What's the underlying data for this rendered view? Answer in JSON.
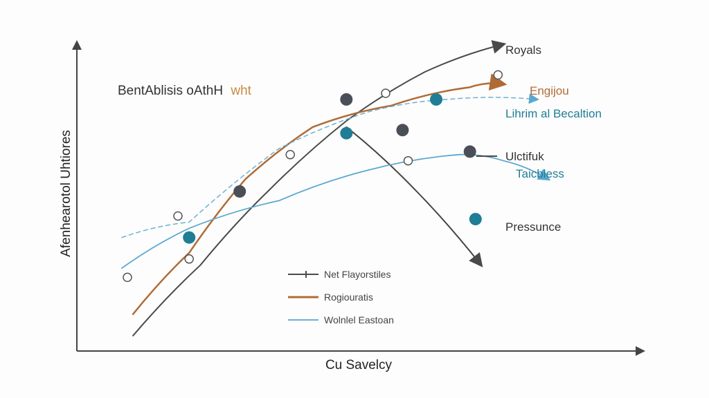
{
  "colors": {
    "royals": "#4a4a4a",
    "engijou": "#b06b35",
    "lihrim": "#6bb0d0",
    "pressunce": "#444444",
    "taicbless": "#5ba8d0",
    "dot_dark": "#4a4f57",
    "dot_teal": "#1f7d95",
    "axis": "#444444"
  },
  "chart_data": {
    "type": "line",
    "title": "BentAblisis oAthH",
    "title_suffix": "wht",
    "xlabel": "Cu Savelcy",
    "ylabel": "Afenhearotol Uhtiores",
    "xlim": [
      0,
      100
    ],
    "ylim": [
      0,
      100
    ],
    "grid": false,
    "series": [
      {
        "name": "Royals",
        "key": "royals",
        "x": [
          10,
          22,
          34,
          48,
          62,
          76
        ],
        "y": [
          5,
          28,
          52,
          75,
          91,
          100
        ]
      },
      {
        "name": "Engijou",
        "key": "engijou",
        "x": [
          10,
          20,
          30,
          42,
          56,
          70,
          76
        ],
        "y": [
          12,
          32,
          56,
          73,
          80,
          86,
          87
        ]
      },
      {
        "name": "Lihrim al Becaltion",
        "key": "lihrim",
        "x": [
          8,
          20,
          36,
          52,
          66,
          82
        ],
        "y": [
          37,
          42,
          66,
          78,
          82,
          82
        ]
      },
      {
        "name": "Ulctifuk",
        "key": "royals",
        "x": [],
        "y": []
      },
      {
        "name": "Pressunce",
        "key": "pressunce",
        "x": [
          48,
          60,
          72
        ],
        "y": [
          73,
          53,
          28
        ]
      },
      {
        "name": "Taicbless",
        "key": "taicbless",
        "x": [
          8,
          20,
          36,
          52,
          68,
          76,
          84
        ],
        "y": [
          27,
          40,
          49,
          59,
          64,
          62,
          56
        ]
      }
    ],
    "points": [
      {
        "x": 48,
        "y": 82,
        "kind": "dark"
      },
      {
        "x": 29,
        "y": 52,
        "kind": "dark"
      },
      {
        "x": 58,
        "y": 72,
        "kind": "dark"
      },
      {
        "x": 70,
        "y": 65,
        "kind": "dark"
      },
      {
        "x": 48,
        "y": 71,
        "kind": "teal"
      },
      {
        "x": 20,
        "y": 37,
        "kind": "teal"
      },
      {
        "x": 64,
        "y": 82,
        "kind": "teal"
      },
      {
        "x": 71,
        "y": 43,
        "kind": "teal"
      },
      {
        "x": 18,
        "y": 44,
        "kind": "open"
      },
      {
        "x": 38,
        "y": 64,
        "kind": "open"
      },
      {
        "x": 55,
        "y": 84,
        "kind": "open"
      },
      {
        "x": 59,
        "y": 62,
        "kind": "open"
      },
      {
        "x": 20,
        "y": 30,
        "kind": "open"
      },
      {
        "x": 9,
        "y": 24,
        "kind": "open"
      },
      {
        "x": 75,
        "y": 90,
        "kind": "open"
      }
    ],
    "legend": [
      {
        "label": "Net Flayorstiles",
        "key": "royals"
      },
      {
        "label": "Rogiouratis",
        "key": "engijou"
      },
      {
        "label": "Wolnlel Eastoan",
        "key": "lihrim"
      }
    ],
    "legend_position": "bottom-center"
  }
}
